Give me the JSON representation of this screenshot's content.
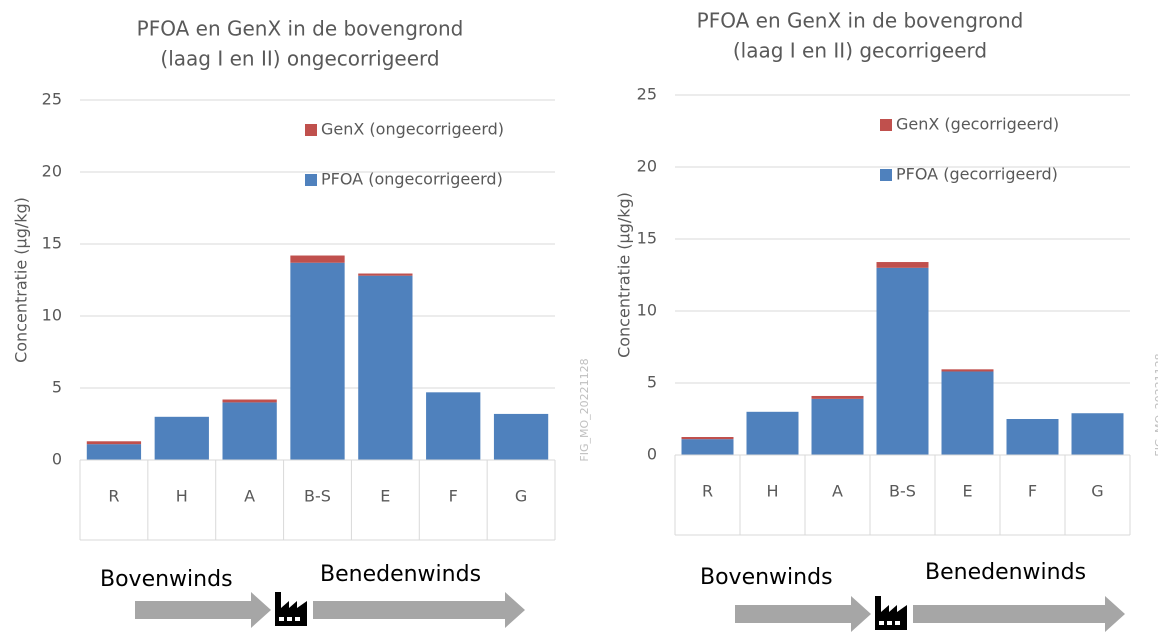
{
  "chart_data": [
    {
      "type": "stacked_bar",
      "title": [
        "PFOA en GenX in de bovengrond",
        "(laag I en II) ongecorrigeerd"
      ],
      "ylabel": "Concentratie (µg/kg)",
      "categories": [
        "R",
        "H",
        "A",
        "B-S",
        "E",
        "F",
        "G"
      ],
      "series": [
        {
          "name": "PFOA (ongecorrigeerd)",
          "color": "#4f81bd",
          "values": [
            1.1,
            3.0,
            4.0,
            13.7,
            12.8,
            4.7,
            3.2
          ]
        },
        {
          "name": "GenX (ongecorrigeerd)",
          "color": "#c0504d",
          "values": [
            0.2,
            0,
            0.2,
            0.5,
            0.15,
            0,
            0
          ]
        }
      ],
      "ylim": [
        0,
        25
      ],
      "yticks": [
        0,
        5,
        10,
        15,
        20,
        25
      ],
      "grid": true,
      "legend": "top-right",
      "annotations": [
        "Bovenwinds",
        "Benedenwinds"
      ],
      "watermark": "FIG_MO_20221128"
    },
    {
      "type": "stacked_bar",
      "title": [
        "PFOA en GenX in de bovengrond",
        "(laag I en II) gecorrigeerd"
      ],
      "ylabel": "Concentratie (µg/kg)",
      "categories": [
        "R",
        "H",
        "A",
        "B-S",
        "E",
        "F",
        "G"
      ],
      "series": [
        {
          "name": "PFOA (gecorrigeerd)",
          "color": "#4f81bd",
          "values": [
            1.1,
            3.0,
            3.9,
            13.0,
            5.8,
            2.5,
            2.9
          ]
        },
        {
          "name": "GenX  (gecorrigeerd)",
          "color": "#c0504d",
          "values": [
            0.15,
            0,
            0.2,
            0.4,
            0.15,
            0,
            0
          ]
        }
      ],
      "ylim": [
        0,
        25
      ],
      "yticks": [
        0,
        5,
        10,
        15,
        20,
        25
      ],
      "grid": true,
      "legend": "top-right",
      "annotations": [
        "Bovenwinds",
        "Benedenwinds"
      ],
      "watermark": "FIG_MO_20221128"
    }
  ]
}
